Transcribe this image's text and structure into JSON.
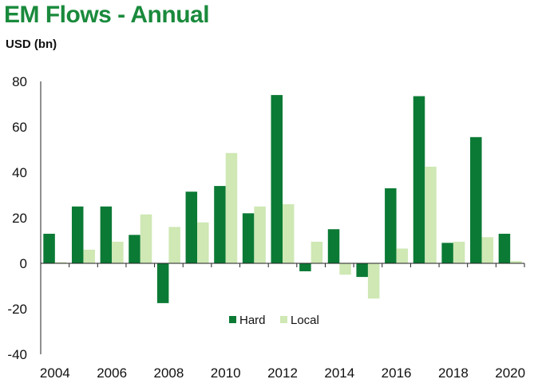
{
  "title": "EM Flows - Annual",
  "unit": "USD (bn)",
  "chart_data": {
    "type": "bar",
    "title": "EM Flows - Annual",
    "ylabel": "USD (bn)",
    "xlabel": "",
    "ylim": [
      -40,
      80
    ],
    "yticks": [
      -40,
      -20,
      0,
      20,
      40,
      60,
      80
    ],
    "grid": false,
    "legend_position": "bottom-center",
    "categories": [
      "2004",
      "2005",
      "2006",
      "2007",
      "2008",
      "2009",
      "2010",
      "2011",
      "2012",
      "2013",
      "2014",
      "2015",
      "2016",
      "2017",
      "2018",
      "2019",
      "2020"
    ],
    "xtick_labels": [
      "2004",
      "2006",
      "2008",
      "2010",
      "2012",
      "2014",
      "2016",
      "2018",
      "2020"
    ],
    "series": [
      {
        "name": "Hard",
        "color": "#0b7a35",
        "values": [
          13,
          25,
          25,
          12.5,
          -17.5,
          31.5,
          34,
          22,
          74,
          -3.5,
          15,
          -6,
          33,
          73.5,
          9,
          55.5,
          13
        ]
      },
      {
        "name": "Local",
        "color": "#cfe8b4",
        "values": [
          0.5,
          6,
          9.5,
          21.5,
          16,
          18,
          48.5,
          25,
          26,
          9.5,
          -5,
          -15.5,
          6.5,
          42.5,
          9.5,
          11.5,
          1
        ]
      }
    ]
  }
}
